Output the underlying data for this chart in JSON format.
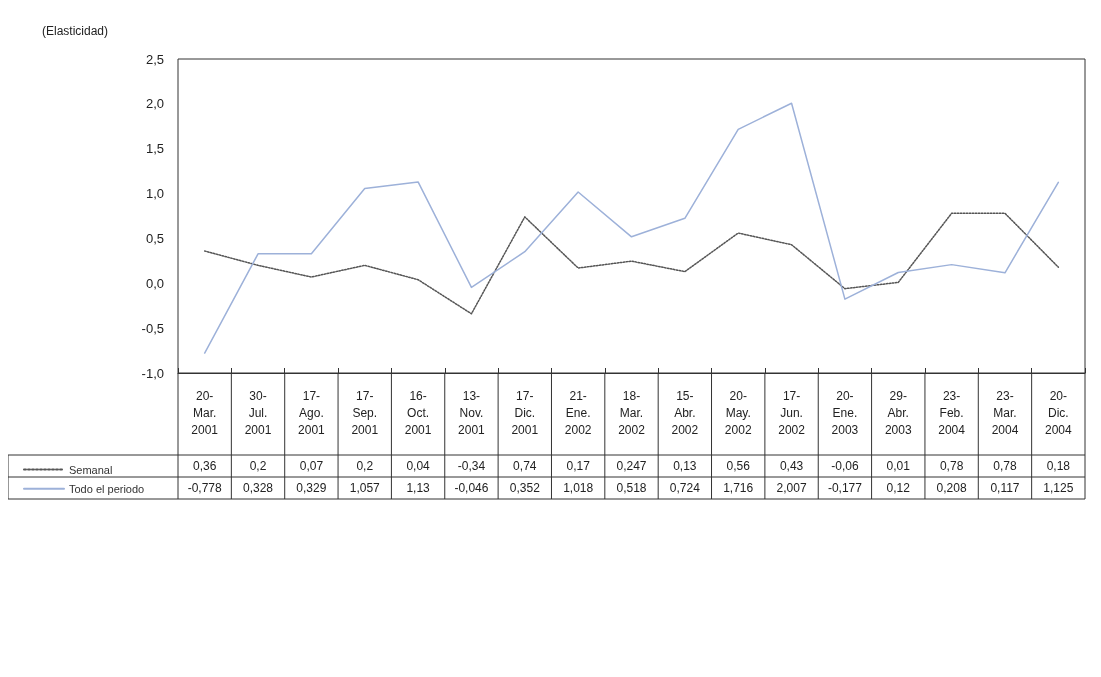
{
  "chart_data": {
    "type": "line",
    "ylabel": "(Elasticidad)",
    "categories": [
      "20-\nMar.\n2001",
      "30-\nJul.\n2001",
      "17-\nAgo.\n2001",
      "17-\nSep.\n2001",
      "16-\nOct.\n2001",
      "13-\nNov.\n2001",
      "17-\nDic.\n2001",
      "21-\nEne.\n2002",
      "18-\nMar.\n2002",
      "15-\nAbr.\n2002",
      "20-\nMay.\n2002",
      "17-\nJun.\n2002",
      "20-\nEne.\n2003",
      "29-\nAbr.\n2003",
      "23-\nFeb.\n2004",
      "23-\nMar.\n2004",
      "20-\nDic.\n2004"
    ],
    "series": [
      {
        "name": "Semanal",
        "color": "#555555",
        "line_style": "dotted",
        "values": [
          0.36,
          0.2,
          0.07,
          0.2,
          0.04,
          -0.34,
          0.74,
          0.17,
          0.247,
          0.13,
          0.56,
          0.43,
          -0.06,
          0.01,
          0.78,
          0.78,
          0.18
        ],
        "value_labels": [
          "0,36",
          "0,2",
          "0,07",
          "0,2",
          "0,04",
          "-0,34",
          "0,74",
          "0,17",
          "0,247",
          "0,13",
          "0,56",
          "0,43",
          "-0,06",
          "0,01",
          "0,78",
          "0,78",
          "0,18"
        ]
      },
      {
        "name": "Todo el periodo",
        "color": "#9db1d9",
        "line_style": "solid",
        "values": [
          -0.778,
          0.328,
          0.329,
          1.057,
          1.13,
          -0.046,
          0.352,
          1.018,
          0.518,
          0.724,
          1.716,
          2.007,
          -0.177,
          0.12,
          0.208,
          0.117,
          1.125
        ],
        "value_labels": [
          "-0,778",
          "0,328",
          "0,329",
          "1,057",
          "1,13",
          "-0,046",
          "0,352",
          "1,018",
          "0,518",
          "0,724",
          "1,716",
          "2,007",
          "-0,177",
          "0,12",
          "0,208",
          "0,117",
          "1,125"
        ]
      }
    ],
    "ylim": [
      -1,
      2.5
    ],
    "yticks": [
      {
        "value": -1,
        "label": "-1,0"
      },
      {
        "value": -0.5,
        "label": "-0,5"
      },
      {
        "value": 0,
        "label": "0,0"
      },
      {
        "value": 0.5,
        "label": "0,5"
      },
      {
        "value": 1,
        "label": "1,0"
      },
      {
        "value": 1.5,
        "label": "1,5"
      },
      {
        "value": 2,
        "label": "2,0"
      },
      {
        "value": 2.5,
        "label": "2,5"
      }
    ],
    "grid": false,
    "legend": "bottom left",
    "marker": "none"
  }
}
